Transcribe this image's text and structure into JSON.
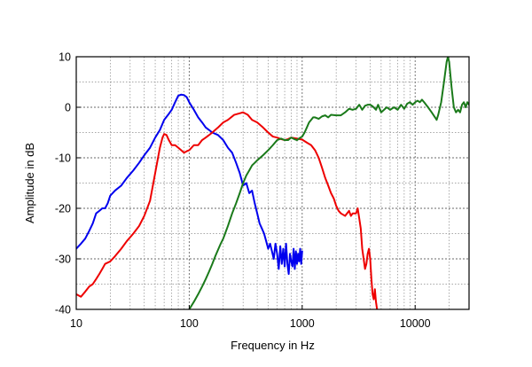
{
  "chart_data": {
    "type": "line",
    "title": "",
    "xlabel": "Frequency in Hz",
    "ylabel": "Amplitude in dB",
    "xscale": "log",
    "xlim": [
      10,
      30000
    ],
    "ylim": [
      -40,
      10
    ],
    "xticks": [
      10,
      100,
      1000,
      10000
    ],
    "xtick_labels": [
      "10",
      "100",
      "1000",
      "10000"
    ],
    "yticks": [
      -40,
      -30,
      -20,
      -10,
      0,
      10
    ],
    "ytick_labels": [
      "-40",
      "-30",
      "-20",
      "-10",
      "0",
      "10"
    ],
    "grid": true,
    "legend": "none",
    "series": [
      {
        "color": "#0000ee",
        "points": [
          [
            10,
            -28
          ],
          [
            11,
            -27
          ],
          [
            12,
            -26
          ],
          [
            13,
            -24.5
          ],
          [
            14,
            -23
          ],
          [
            15,
            -21
          ],
          [
            16,
            -20.5
          ],
          [
            17,
            -20
          ],
          [
            18,
            -20
          ],
          [
            19,
            -19
          ],
          [
            20,
            -17.5
          ],
          [
            22,
            -16.5
          ],
          [
            25,
            -15.5
          ],
          [
            28,
            -14
          ],
          [
            32,
            -12.5
          ],
          [
            36,
            -11
          ],
          [
            40,
            -9.5
          ],
          [
            45,
            -8
          ],
          [
            50,
            -6
          ],
          [
            55,
            -4.5
          ],
          [
            60,
            -2.5
          ],
          [
            65,
            -1.5
          ],
          [
            70,
            -0.5
          ],
          [
            75,
            1
          ],
          [
            80,
            2.3
          ],
          [
            85,
            2.5
          ],
          [
            90,
            2.4
          ],
          [
            95,
            2
          ],
          [
            100,
            1
          ],
          [
            110,
            -0.5
          ],
          [
            120,
            -2
          ],
          [
            130,
            -3
          ],
          [
            140,
            -4
          ],
          [
            150,
            -4.5
          ],
          [
            160,
            -5
          ],
          [
            180,
            -5.5
          ],
          [
            200,
            -6.5
          ],
          [
            220,
            -8
          ],
          [
            240,
            -9
          ],
          [
            260,
            -11
          ],
          [
            280,
            -13
          ],
          [
            300,
            -15.5
          ],
          [
            320,
            -15
          ],
          [
            340,
            -17
          ],
          [
            360,
            -16.5
          ],
          [
            380,
            -19
          ],
          [
            400,
            -21
          ],
          [
            420,
            -23
          ],
          [
            440,
            -24
          ],
          [
            460,
            -25
          ],
          [
            480,
            -26.5
          ],
          [
            500,
            -28
          ],
          [
            520,
            -27
          ],
          [
            540,
            -28.5
          ],
          [
            560,
            -30
          ],
          [
            580,
            -27
          ],
          [
            600,
            -29
          ],
          [
            620,
            -32
          ],
          [
            640,
            -27.5
          ],
          [
            660,
            -31
          ],
          [
            680,
            -28
          ],
          [
            700,
            -31.5
          ],
          [
            720,
            -27
          ],
          [
            740,
            -31
          ],
          [
            760,
            -33
          ],
          [
            780,
            -29
          ],
          [
            800,
            -30.5
          ],
          [
            820,
            -31.5
          ],
          [
            840,
            -28
          ],
          [
            860,
            -32
          ],
          [
            880,
            -28.5
          ],
          [
            900,
            -31
          ],
          [
            920,
            -29
          ],
          [
            940,
            -30.5
          ],
          [
            960,
            -28
          ],
          [
            980,
            -31
          ],
          [
            1000,
            -28.5
          ]
        ]
      },
      {
        "color": "#ee0000",
        "points": [
          [
            10,
            -37
          ],
          [
            11,
            -37.5
          ],
          [
            12,
            -36.5
          ],
          [
            13,
            -35.5
          ],
          [
            14,
            -35
          ],
          [
            15,
            -34
          ],
          [
            16,
            -33
          ],
          [
            17,
            -32
          ],
          [
            18,
            -31
          ],
          [
            20,
            -30.5
          ],
          [
            22,
            -29.5
          ],
          [
            25,
            -28
          ],
          [
            28,
            -26.5
          ],
          [
            32,
            -25
          ],
          [
            36,
            -23.5
          ],
          [
            40,
            -21.5
          ],
          [
            45,
            -18.5
          ],
          [
            50,
            -13
          ],
          [
            55,
            -8
          ],
          [
            58,
            -6
          ],
          [
            60,
            -5.3
          ],
          [
            63,
            -5.5
          ],
          [
            66,
            -6.5
          ],
          [
            70,
            -7.5
          ],
          [
            75,
            -7.5
          ],
          [
            80,
            -8
          ],
          [
            85,
            -8.5
          ],
          [
            90,
            -9
          ],
          [
            95,
            -8.7
          ],
          [
            100,
            -8.5
          ],
          [
            110,
            -7.5
          ],
          [
            120,
            -7.5
          ],
          [
            130,
            -6.5
          ],
          [
            140,
            -6
          ],
          [
            150,
            -5.5
          ],
          [
            160,
            -5
          ],
          [
            180,
            -4
          ],
          [
            200,
            -3
          ],
          [
            220,
            -2.5
          ],
          [
            250,
            -1.5
          ],
          [
            280,
            -1.2
          ],
          [
            300,
            -1
          ],
          [
            330,
            -1.5
          ],
          [
            360,
            -2.5
          ],
          [
            400,
            -3
          ],
          [
            450,
            -4
          ],
          [
            500,
            -5
          ],
          [
            550,
            -5.8
          ],
          [
            600,
            -6
          ],
          [
            650,
            -6.3
          ],
          [
            700,
            -6.5
          ],
          [
            750,
            -6.3
          ],
          [
            800,
            -6
          ],
          [
            900,
            -6.2
          ],
          [
            1000,
            -6.4
          ],
          [
            1100,
            -7
          ],
          [
            1200,
            -7.5
          ],
          [
            1300,
            -8.5
          ],
          [
            1400,
            -10
          ],
          [
            1500,
            -12
          ],
          [
            1600,
            -14
          ],
          [
            1700,
            -15.5
          ],
          [
            1800,
            -17
          ],
          [
            1900,
            -18
          ],
          [
            2000,
            -19.5
          ],
          [
            2100,
            -20.5
          ],
          [
            2200,
            -21
          ],
          [
            2400,
            -21.5
          ],
          [
            2600,
            -20.5
          ],
          [
            2700,
            -21.5
          ],
          [
            2800,
            -21
          ],
          [
            3000,
            -21
          ],
          [
            3100,
            -20
          ],
          [
            3200,
            -22
          ],
          [
            3300,
            -24
          ],
          [
            3400,
            -28
          ],
          [
            3500,
            -30
          ],
          [
            3600,
            -32
          ],
          [
            3700,
            -31
          ],
          [
            3800,
            -29
          ],
          [
            3900,
            -28
          ],
          [
            4000,
            -30
          ],
          [
            4100,
            -34
          ],
          [
            4200,
            -37
          ],
          [
            4300,
            -38
          ],
          [
            4400,
            -36
          ],
          [
            4500,
            -38.5
          ],
          [
            4600,
            -40
          ]
        ]
      },
      {
        "color": "#1a7a1a",
        "points": [
          [
            100,
            -40
          ],
          [
            110,
            -38.5
          ],
          [
            120,
            -37
          ],
          [
            130,
            -35.5
          ],
          [
            140,
            -34
          ],
          [
            150,
            -32.5
          ],
          [
            160,
            -31
          ],
          [
            170,
            -29.5
          ],
          [
            180,
            -28.2
          ],
          [
            190,
            -27
          ],
          [
            200,
            -26
          ],
          [
            220,
            -23.5
          ],
          [
            240,
            -21
          ],
          [
            260,
            -19
          ],
          [
            280,
            -17
          ],
          [
            300,
            -15
          ],
          [
            320,
            -13.5
          ],
          [
            340,
            -12.5
          ],
          [
            360,
            -11.5
          ],
          [
            380,
            -11
          ],
          [
            400,
            -10.5
          ],
          [
            450,
            -9.5
          ],
          [
            500,
            -8.5
          ],
          [
            550,
            -7.5
          ],
          [
            600,
            -6.5
          ],
          [
            650,
            -6.2
          ],
          [
            700,
            -6.5
          ],
          [
            750,
            -6.5
          ],
          [
            800,
            -6
          ],
          [
            850,
            -6.3
          ],
          [
            900,
            -6.5
          ],
          [
            950,
            -6.1
          ],
          [
            1000,
            -5.8
          ],
          [
            1050,
            -5
          ],
          [
            1100,
            -4
          ],
          [
            1150,
            -3
          ],
          [
            1200,
            -2.5
          ],
          [
            1250,
            -2
          ],
          [
            1300,
            -2
          ],
          [
            1400,
            -2.3
          ],
          [
            1500,
            -1.8
          ],
          [
            1600,
            -1.6
          ],
          [
            1700,
            -2
          ],
          [
            1800,
            -1.5
          ],
          [
            2000,
            -1.6
          ],
          [
            2200,
            -1.6
          ],
          [
            2400,
            -1
          ],
          [
            2600,
            -0.3
          ],
          [
            2800,
            -0.5
          ],
          [
            3000,
            -0.3
          ],
          [
            3200,
            0.5
          ],
          [
            3400,
            -0.5
          ],
          [
            3600,
            0.3
          ],
          [
            3800,
            0.5
          ],
          [
            4000,
            0.5
          ],
          [
            4200,
            0.2
          ],
          [
            4500,
            -0.5
          ],
          [
            4700,
            0.5
          ],
          [
            5000,
            -1
          ],
          [
            5300,
            -0.5
          ],
          [
            5600,
            0
          ],
          [
            6000,
            -0.5
          ],
          [
            6500,
            0
          ],
          [
            7000,
            -0.5
          ],
          [
            7500,
            0.5
          ],
          [
            8000,
            -0.3
          ],
          [
            8500,
            0.7
          ],
          [
            9000,
            1
          ],
          [
            9500,
            0.5
          ],
          [
            10000,
            1
          ],
          [
            10500,
            1.3
          ],
          [
            11000,
            1
          ],
          [
            11500,
            1.5
          ],
          [
            12000,
            1
          ],
          [
            13000,
            0
          ],
          [
            14000,
            -1
          ],
          [
            15000,
            -2
          ],
          [
            15500,
            -2.5
          ],
          [
            16000,
            -1.5
          ],
          [
            17000,
            1
          ],
          [
            18000,
            5
          ],
          [
            19000,
            9
          ],
          [
            19500,
            10
          ],
          [
            20000,
            9
          ],
          [
            21000,
            4
          ],
          [
            22000,
            0
          ],
          [
            23000,
            -1
          ],
          [
            24000,
            -0.5
          ],
          [
            25000,
            -1
          ],
          [
            26000,
            0.5
          ],
          [
            27000,
            1
          ],
          [
            28000,
            0
          ],
          [
            29000,
            1
          ],
          [
            30000,
            0.5
          ]
        ]
      }
    ]
  }
}
